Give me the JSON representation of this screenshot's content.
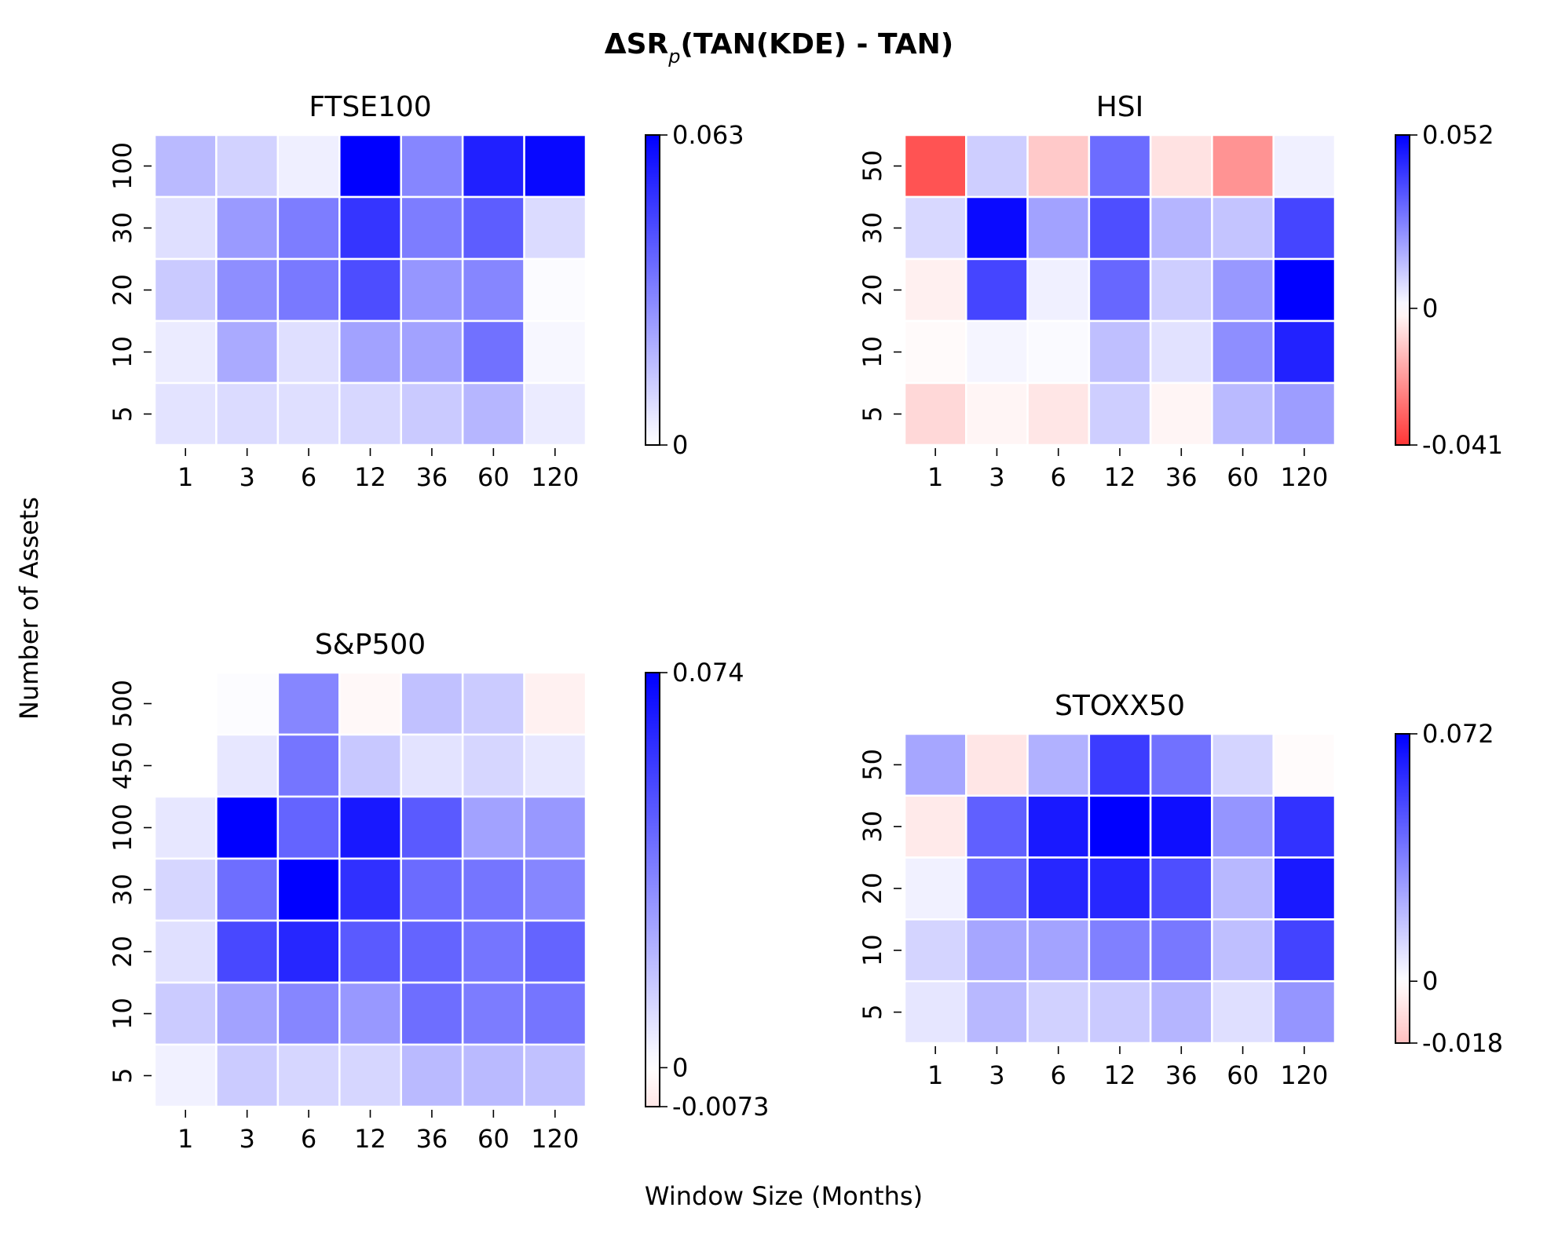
{
  "figure": {
    "title_main": "ΔSR",
    "title_sub": "p",
    "title_rest": "(TAN(KDE) - TAN)",
    "xlabel": "Window Size (Months)",
    "ylabel": "Number of Assets"
  },
  "chart_data": [
    {
      "type": "heatmap",
      "title": "FTSE100",
      "x": [
        "1",
        "3",
        "6",
        "12",
        "36",
        "60",
        "120"
      ],
      "y": [
        "100",
        "30",
        "20",
        "10",
        "5"
      ],
      "values": [
        [
          0.017,
          0.011,
          0.004,
          0.063,
          0.03,
          0.055,
          0.061
        ],
        [
          0.008,
          0.025,
          0.032,
          0.05,
          0.032,
          0.04,
          0.009
        ],
        [
          0.013,
          0.028,
          0.033,
          0.044,
          0.026,
          0.03,
          0.001
        ],
        [
          0.005,
          0.021,
          0.008,
          0.023,
          0.023,
          0.035,
          0.002
        ],
        [
          0.007,
          0.009,
          0.008,
          0.01,
          0.013,
          0.018,
          0.005
        ]
      ],
      "colorbar": {
        "ticks": [
          "0.063",
          "0"
        ],
        "vmin": 0,
        "vmax": 0.063
      }
    },
    {
      "type": "heatmap",
      "title": "HSI",
      "x": [
        "1",
        "3",
        "6",
        "12",
        "36",
        "60",
        "120"
      ],
      "y": [
        "50",
        "30",
        "20",
        "10",
        "5"
      ],
      "values": [
        [
          -0.035,
          0.01,
          -0.011,
          0.03,
          -0.006,
          -0.022,
          0.003
        ],
        [
          0.008,
          0.05,
          0.019,
          0.036,
          0.015,
          0.012,
          0.038
        ],
        [
          -0.003,
          0.038,
          0.003,
          0.031,
          0.01,
          0.021,
          0.052
        ],
        [
          -0.001,
          0.002,
          0.001,
          0.013,
          0.006,
          0.023,
          0.045
        ],
        [
          -0.008,
          -0.002,
          -0.005,
          0.01,
          -0.002,
          0.014,
          0.02
        ]
      ],
      "colorbar": {
        "ticks": [
          "0.052",
          "0",
          "-0.041"
        ],
        "vmin": -0.041,
        "vmax": 0.052
      }
    },
    {
      "type": "heatmap",
      "title": "S&P500",
      "x": [
        "1",
        "3",
        "6",
        "12",
        "36",
        "60",
        "120"
      ],
      "y": [
        "500",
        "450",
        "100",
        "30",
        "20",
        "10",
        "5"
      ],
      "values": [
        [
          null,
          0.001,
          0.035,
          -0.002,
          0.018,
          0.015,
          -0.004
        ],
        [
          null,
          0.007,
          0.04,
          0.016,
          0.008,
          0.012,
          0.007
        ],
        [
          0.007,
          0.074,
          0.045,
          0.067,
          0.048,
          0.027,
          0.03
        ],
        [
          0.012,
          0.042,
          0.074,
          0.06,
          0.043,
          0.04,
          0.035
        ],
        [
          0.009,
          0.053,
          0.063,
          0.048,
          0.045,
          0.04,
          0.045
        ],
        [
          0.015,
          0.027,
          0.035,
          0.03,
          0.042,
          0.038,
          0.04
        ],
        [
          0.004,
          0.015,
          0.012,
          0.012,
          0.02,
          0.02,
          0.018
        ]
      ],
      "colorbar": {
        "ticks": [
          "0.074",
          "0",
          "-0.0073"
        ],
        "vmin": -0.0073,
        "vmax": 0.074
      }
    },
    {
      "type": "heatmap",
      "title": "STOXX50",
      "x": [
        "1",
        "3",
        "6",
        "12",
        "36",
        "60",
        "120"
      ],
      "y": [
        "50",
        "30",
        "20",
        "10",
        "5"
      ],
      "values": [
        [
          0.025,
          -0.007,
          0.022,
          0.055,
          0.04,
          0.012,
          -0.001
        ],
        [
          -0.006,
          0.045,
          0.065,
          0.072,
          0.068,
          0.03,
          0.058
        ],
        [
          0.004,
          0.043,
          0.061,
          0.061,
          0.05,
          0.02,
          0.065
        ],
        [
          0.012,
          0.025,
          0.026,
          0.036,
          0.038,
          0.018,
          0.053
        ],
        [
          0.007,
          0.02,
          0.013,
          0.015,
          0.021,
          0.009,
          0.03
        ]
      ],
      "colorbar": {
        "ticks": [
          "0.072",
          "0",
          "-0.018"
        ],
        "vmin": -0.018,
        "vmax": 0.072
      }
    }
  ]
}
